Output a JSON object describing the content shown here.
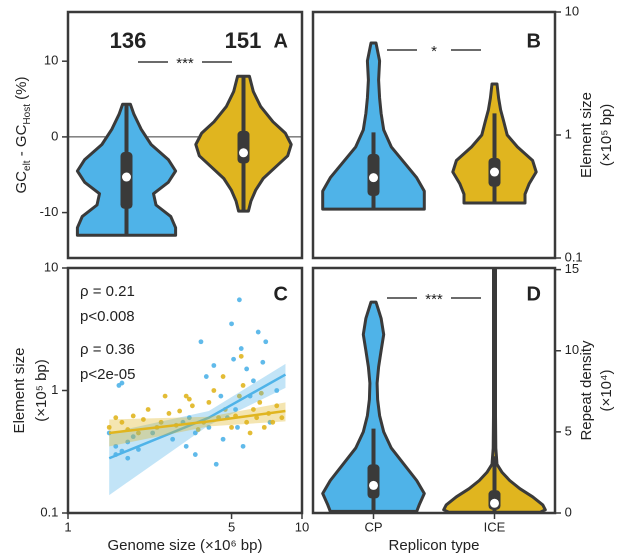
{
  "chart_data": [
    {
      "type": "violin",
      "label": "A",
      "significance": "***",
      "ylim": [
        -16,
        16.5
      ],
      "yticks": [
        -10,
        0,
        10
      ],
      "hline": 0,
      "ylabel_parts": [
        "GC",
        "elt",
        " - GC",
        "Host",
        " (%)"
      ],
      "categories": [
        null,
        null
      ],
      "annotations": [
        {
          "text": "136",
          "color": "#4fb3e8"
        },
        {
          "text": "151",
          "color": "#e0b51f"
        }
      ],
      "series": [
        {
          "color": "#4fb3e8",
          "density": {
            "y": [
              4.3,
              3,
              1,
              -1,
              -3,
              -4.5,
              -6,
              -7.5,
              -9,
              -10.5,
              -12,
              -13
            ],
            "width": [
              0.08,
              0.15,
              0.3,
              0.5,
              0.85,
              1.0,
              0.85,
              0.55,
              0.6,
              0.9,
              1.0,
              1.0
            ]
          },
          "whisker_low": -13,
          "q1": -9.5,
          "median": -5.3,
          "q3": -2,
          "whisker_high": 4.3
        },
        {
          "color": "#e0b51f",
          "density": {
            "y": [
              8,
              6,
              4,
              2,
              0.5,
              -1,
              -2.5,
              -4,
              -5.5,
              -7,
              -8.5,
              -9.8
            ],
            "width": [
              0.12,
              0.2,
              0.35,
              0.6,
              0.85,
              0.97,
              0.9,
              0.65,
              0.4,
              0.25,
              0.15,
              0.1
            ]
          },
          "whisker_low": -9.8,
          "q1": -3.5,
          "median": -2.1,
          "q3": 0.8,
          "whisker_high": 8
        }
      ]
    },
    {
      "type": "violin",
      "label": "B",
      "significance": "*",
      "yscale": "log",
      "ylim": [
        0.1,
        10
      ],
      "yticks": [
        0.1,
        1,
        10
      ],
      "ylabel": [
        "Element size",
        "(×10⁵ bp)"
      ],
      "categories": [
        null,
        null
      ],
      "series": [
        {
          "color": "#4fb3e8",
          "density": {
            "y": [
              5.6,
              4,
              2.8,
              2,
              1.5,
              1.1,
              0.8,
              0.6,
              0.45,
              0.35,
              0.28,
              0.25
            ],
            "width": [
              0.05,
              0.12,
              0.1,
              0.12,
              0.15,
              0.2,
              0.35,
              0.6,
              0.85,
              1.0,
              1.0,
              1.0
            ]
          },
          "whisker_low": 0.25,
          "q1": 0.32,
          "median": 0.45,
          "q3": 0.7,
          "whisker_high": 1.05
        },
        {
          "color": "#e0b51f",
          "density": {
            "y": [
              2.6,
              2,
              1.6,
              1.3,
              1.0,
              0.8,
              0.62,
              0.5,
              0.4,
              0.33,
              0.28
            ],
            "width": [
              0.05,
              0.08,
              0.12,
              0.18,
              0.25,
              0.45,
              0.75,
              0.82,
              0.68,
              0.6,
              0.6
            ]
          },
          "whisker_low": 0.28,
          "q1": 0.38,
          "median": 0.5,
          "q3": 0.65,
          "whisker_high": 1.5
        }
      ]
    },
    {
      "type": "scatter",
      "label": "C",
      "xscale": "log",
      "yscale": "log",
      "xlim": [
        1,
        10
      ],
      "xticks": [
        1,
        5,
        10
      ],
      "ylim": [
        0.1,
        10
      ],
      "yticks": [
        0.1,
        1,
        10
      ],
      "xlabel": "Genome size (×10⁶ bp)",
      "ylabel": [
        "Element size",
        "(×10⁵ bp)"
      ],
      "annotations": [
        {
          "text": "ρ = 0.21",
          "color": "#e0b51f"
        },
        {
          "text": "p<0.008",
          "color": "#e0b51f"
        },
        {
          "text": "ρ = 0.36",
          "color": "#4fb3e8"
        },
        {
          "text": "p<2e-05",
          "color": "#4fb3e8"
        }
      ],
      "series": [
        {
          "color": "#4fb3e8",
          "x": [
            1.5,
            1.6,
            1.6,
            1.7,
            1.7,
            1.65,
            1.8,
            1.8,
            1.9,
            2.0,
            2.3,
            2.8,
            3.1,
            3.2,
            3.3,
            3.5,
            3.5,
            3.7,
            3.9,
            4.0,
            4.2,
            4.5,
            4.6,
            4.8,
            5.0,
            5.1,
            5.2,
            5.3,
            5.4,
            5.5,
            5.8,
            6.0,
            6.2,
            6.5,
            6.8,
            7.0,
            7.3,
            7.8,
            5.6,
            4.3
          ],
          "values": [
            0.45,
            0.35,
            0.3,
            0.32,
            1.15,
            1.1,
            0.38,
            0.28,
            0.42,
            0.33,
            0.45,
            0.4,
            0.55,
            0.35,
            0.6,
            0.45,
            0.3,
            2.5,
            1.3,
            0.5,
            1.6,
            0.9,
            0.4,
            0.6,
            3.5,
            1.8,
            0.7,
            0.5,
            5.5,
            2.2,
            1.5,
            0.9,
            1.2,
            3.0,
            1.7,
            2.5,
            0.55,
            1.0,
            0.35,
            0.25
          ]
        },
        {
          "color": "#e0b51f",
          "x": [
            1.5,
            1.6,
            1.7,
            1.8,
            1.9,
            2.0,
            2.1,
            2.2,
            2.4,
            2.5,
            2.7,
            2.9,
            3.0,
            3.2,
            3.4,
            3.6,
            3.8,
            4.0,
            4.2,
            4.4,
            4.7,
            5.0,
            5.2,
            5.4,
            5.6,
            5.8,
            6.0,
            6.2,
            6.4,
            6.6,
            6.9,
            7.2,
            7.5,
            7.8,
            8.2,
            5.5,
            4.6,
            3.3,
            2.6,
            6.7
          ],
          "values": [
            0.5,
            0.6,
            0.55,
            0.48,
            0.62,
            0.45,
            0.58,
            0.7,
            0.5,
            0.55,
            0.65,
            0.52,
            0.68,
            0.9,
            0.75,
            0.48,
            0.55,
            0.8,
            1.0,
            0.6,
            0.7,
            0.5,
            0.62,
            0.9,
            1.1,
            0.55,
            0.45,
            0.7,
            0.6,
            0.8,
            0.5,
            0.65,
            0.55,
            0.75,
            0.6,
            1.9,
            1.3,
            0.85,
            0.9,
            0.95
          ]
        }
      ],
      "fits": [
        {
          "color": "#4fb3e8",
          "x": [
            1.5,
            4,
            8.5
          ],
          "values": [
            0.28,
            0.6,
            1.35
          ],
          "lower": [
            0.14,
            0.52,
            1.05
          ],
          "upper": [
            0.45,
            0.68,
            1.65
          ]
        },
        {
          "color": "#e0b51f",
          "x": [
            1.5,
            4,
            8.5
          ],
          "values": [
            0.45,
            0.56,
            0.68
          ],
          "lower": [
            0.35,
            0.51,
            0.56
          ],
          "upper": [
            0.58,
            0.61,
            0.8
          ]
        }
      ]
    },
    {
      "type": "violin",
      "label": "D",
      "significance": "***",
      "ylim": [
        0,
        15.1
      ],
      "yticks": [
        0,
        5,
        10,
        15
      ],
      "ylabel": [
        "Repeat density",
        "(×10⁴)"
      ],
      "xlabel": "Replicon type",
      "categories": [
        "CP",
        "ICE"
      ],
      "series": [
        {
          "color": "#4fb3e8",
          "density": {
            "y": [
              13,
              12,
              11,
              10,
              9,
              8,
              7,
              6,
              5,
              4,
              3,
              2,
              1.2,
              0.5,
              0.1
            ],
            "width": [
              0.05,
              0.15,
              0.2,
              0.15,
              0.1,
              0.07,
              0.08,
              0.12,
              0.2,
              0.35,
              0.6,
              0.85,
              1.0,
              0.9,
              0.85
            ]
          },
          "whisker_low": 0.1,
          "q1": 0.9,
          "median": 1.7,
          "q3": 3,
          "whisker_high": 5.2
        },
        {
          "color": "#e0b51f",
          "density": {
            "y": [
              15,
              12,
              9,
              6,
              4,
              3,
              2.5,
              2,
              1.5,
              1,
              0.5,
              0.2,
              0.05
            ],
            "width": [
              0.02,
              0.02,
              0.02,
              0.02,
              0.025,
              0.05,
              0.15,
              0.3,
              0.5,
              0.75,
              0.95,
              1.0,
              0.9
            ]
          },
          "whisker_low": 0.05,
          "q1": 0.2,
          "median": 0.6,
          "q3": 1.4,
          "whisker_high": 3.5
        }
      ]
    }
  ]
}
